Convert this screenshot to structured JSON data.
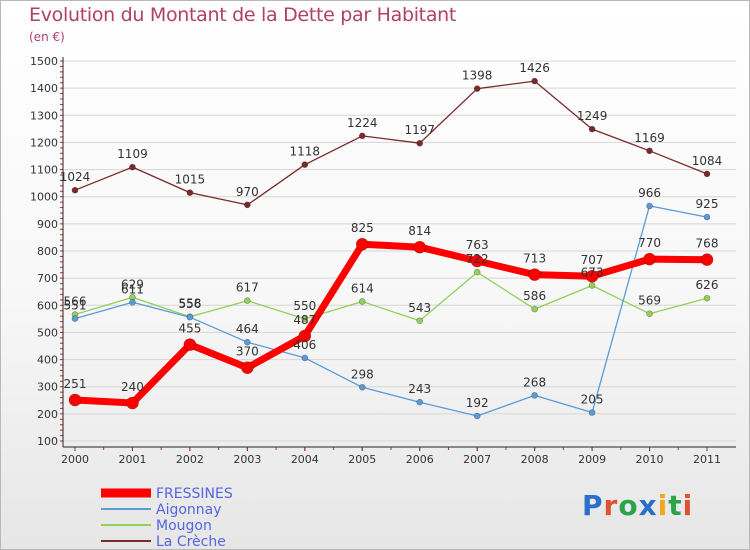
{
  "header": {
    "title": "Evolution du Montant de la Dette par Habitant",
    "unit": "(en €)"
  },
  "brand": {
    "text": "Proxiti",
    "letter_colors": [
      "#2a6fc9",
      "#e0512f",
      "#2ba34a",
      "#2a6fc9",
      "#f2a81d",
      "#2ba34a",
      "#e0512f"
    ]
  },
  "chart_data": {
    "type": "line",
    "x": [
      2000,
      2001,
      2002,
      2003,
      2004,
      2005,
      2006,
      2007,
      2008,
      2009,
      2010,
      2011
    ],
    "ylim": [
      100,
      1500
    ],
    "yticks": [
      100,
      200,
      300,
      400,
      500,
      600,
      700,
      800,
      900,
      1000,
      1100,
      1200,
      1300,
      1400,
      1500
    ],
    "grid": "horizontal",
    "legend_position": "bottom-left",
    "series": [
      {
        "name": "La Crèche",
        "color": "#7a2a2a",
        "values": [
          1024,
          1109,
          1015,
          970,
          1118,
          1224,
          1197,
          1398,
          1426,
          1249,
          1169,
          1084
        ]
      },
      {
        "name": "Mougon",
        "color": "#92d05a",
        "values": [
          566,
          629,
          558,
          617,
          550,
          614,
          543,
          722,
          586,
          673,
          569,
          626
        ]
      },
      {
        "name": "Aigonnay",
        "color": "#5b9bd5",
        "values": [
          551,
          611,
          556,
          464,
          406,
          298,
          243,
          192,
          268,
          205,
          966,
          925
        ]
      },
      {
        "name": "FRESSINES",
        "color": "#ff0000",
        "values": [
          251,
          240,
          455,
          370,
          487,
          825,
          814,
          763,
          713,
          707,
          770,
          768
        ]
      }
    ],
    "legend_order": [
      "FRESSINES",
      "Aigonnay",
      "Mougon",
      "La Crèche"
    ]
  }
}
